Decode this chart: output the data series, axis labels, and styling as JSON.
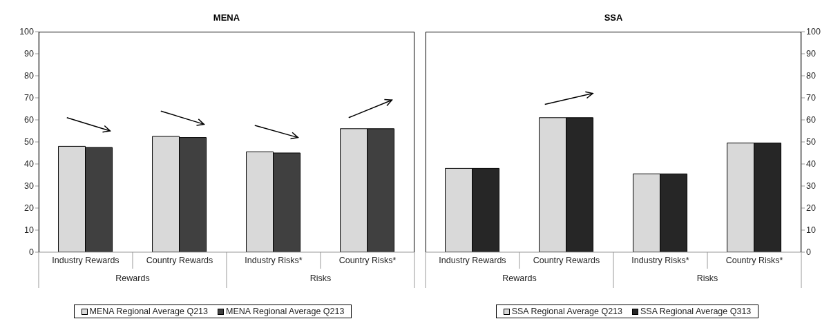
{
  "chart_data": [
    {
      "type": "bar",
      "title": "MENA",
      "categories": [
        "Industry Rewards",
        "Country Rewards",
        "Industry Risks*",
        "Country Risks*"
      ],
      "series": [
        {
          "name": "MENA Regional Average Q213",
          "color": "#d9d9d9",
          "values": [
            48,
            52.5,
            45.5,
            56
          ]
        },
        {
          "name": "MENA Regional Average Q213",
          "color": "#404040",
          "values": [
            47.5,
            52,
            45,
            56
          ]
        }
      ],
      "ylim": [
        0,
        100
      ],
      "yticks": [
        0,
        10,
        20,
        30,
        40,
        50,
        60,
        70,
        80,
        90,
        100
      ],
      "legend": "bottom",
      "annotations": [
        "Rewards",
        "Risks"
      ]
    },
    {
      "type": "bar",
      "title": "SSA",
      "categories": [
        "Industry Rewards",
        "Country Rewards",
        "Industry Risks*",
        "Country Risks*"
      ],
      "series": [
        {
          "name": "SSA Regional Average Q213",
          "color": "#d9d9d9",
          "values": [
            38,
            61,
            35.5,
            49.5
          ]
        },
        {
          "name": "SSA Regional Average Q313",
          "color": "#262626",
          "values": [
            38,
            61,
            35.5,
            49.5
          ]
        }
      ],
      "ylim": [
        0,
        100
      ],
      "yticks": [
        0,
        10,
        20,
        30,
        40,
        50,
        60,
        70,
        80,
        90,
        100
      ],
      "legend": "bottom",
      "annotations": [
        "Rewards",
        "Risks"
      ]
    }
  ]
}
